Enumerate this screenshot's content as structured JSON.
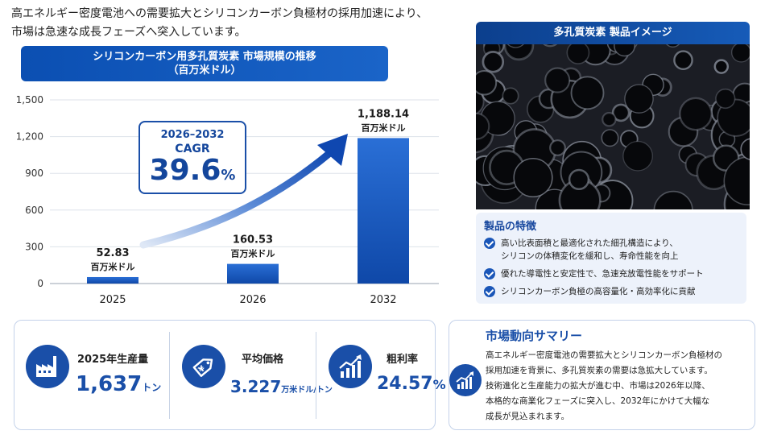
{
  "intro": {
    "line1": "高エネルギー密度電池への需要拡大とシリコンカーボン負極材の採用加速により、",
    "line2": "市場は急速な成長フェーズへ突入しています。"
  },
  "chart_banner": {
    "line1": "シリコンカーボン用多孔質炭素 市場規模の推移",
    "line2": "（百万米ドル）"
  },
  "chart_data": {
    "type": "bar",
    "title": "シリコンカーボン用多孔質炭素 市場規模の推移（百万米ドル）",
    "categories": [
      "2025",
      "2026",
      "2032"
    ],
    "values": [
      52.83,
      160.53,
      1188.14
    ],
    "value_labels": [
      "52.83",
      "160.53",
      "1,188.14"
    ],
    "value_unit": "百万米ドル",
    "yticks": [
      0,
      300,
      600,
      900,
      1200,
      1500
    ],
    "ytick_labels": [
      "0",
      "300",
      "600",
      "900",
      "1,200",
      "1,500"
    ],
    "ylim": [
      0,
      1500
    ],
    "grid": true,
    "bar_color": "#1a58c0",
    "annotation": {
      "period": "2026–2032",
      "label": "CAGR",
      "value": "39.6",
      "unit": "%"
    }
  },
  "product": {
    "title": "多孔質炭素 製品イメージ",
    "features_title": "製品の特徴",
    "features": [
      {
        "line1": "高い比表面積と最適化された細孔構造により、",
        "line2": "シリコンの体積変化を緩和し、寿命性能を向上"
      },
      {
        "line1": "優れた導電性と安定性で、急速充放電性能をサポート",
        "line2": ""
      },
      {
        "line1": "シリコンカーボン負極の高容量化・高効率化に貢献",
        "line2": ""
      }
    ]
  },
  "kpis": [
    {
      "label": "2025年生産量",
      "value": "1,637",
      "unit": "トン",
      "icon": "factory-icon"
    },
    {
      "label": "平均価格",
      "value": "3.227",
      "unit": "万米ドル/トン",
      "icon": "price-tag-icon"
    },
    {
      "label": "粗利率",
      "value": "24.57",
      "unit": "%",
      "icon": "growth-chart-icon"
    }
  ],
  "summary": {
    "title": "市場動向サマリー",
    "lines": [
      "高エネルギー密度電池の需要拡大とシリコンカーボン負極材の",
      "採用加速を背景に、多孔質炭素の需要は急拡大しています。",
      "技術進化と生産能力の拡大が進む中、市場は2026年以降、",
      "本格的な商業化フェーズに突入し、2032年にかけて大幅な",
      "成長が見込まれます。"
    ]
  },
  "colors": {
    "primary": "#1a4fa8",
    "banner": "#0b4fb2",
    "feature_bg": "#edf2fb"
  }
}
